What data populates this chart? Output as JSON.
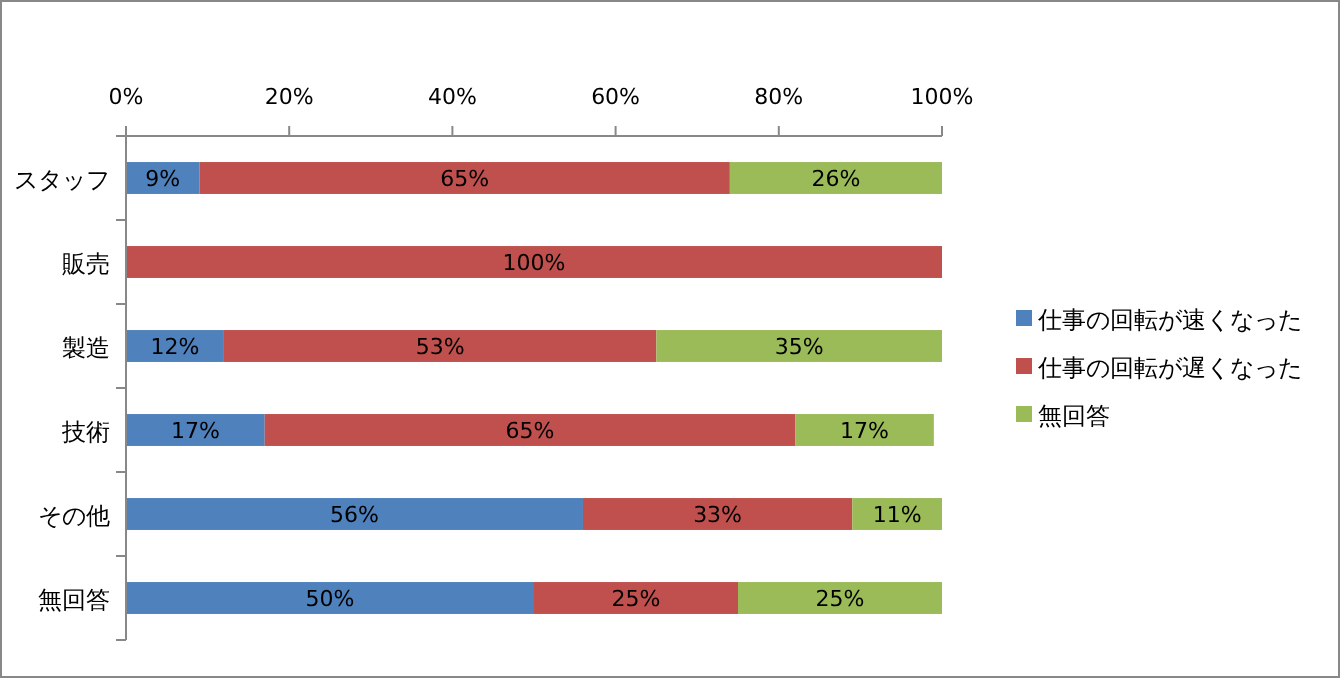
{
  "chart_data": {
    "type": "bar",
    "orientation": "horizontal",
    "stacked": true,
    "legend": "right",
    "grid": false,
    "categories": [
      "スタッフ",
      "販売",
      "製造",
      "技術",
      "その他",
      "無回答"
    ],
    "xlim": [
      0,
      100
    ],
    "xticks": [
      {
        "value": 0,
        "label": "0%"
      },
      {
        "value": 20,
        "label": "20%"
      },
      {
        "value": 40,
        "label": "40%"
      },
      {
        "value": 60,
        "label": "60%"
      },
      {
        "value": 80,
        "label": "80%"
      },
      {
        "value": 100,
        "label": "100%"
      }
    ],
    "series": [
      {
        "name": "仕事の回転が速くなった",
        "color": "#4f81bd",
        "values": [
          9,
          0,
          12,
          17,
          56,
          50
        ],
        "value_labels": [
          "9%",
          null,
          "12%",
          "17%",
          "56%",
          "50%"
        ]
      },
      {
        "name": "仕事の回転が遅くなった",
        "color": "#c0504d",
        "values": [
          65,
          100,
          53,
          65,
          33,
          25
        ],
        "value_labels": [
          "65%",
          "100%",
          "53%",
          "65%",
          "33%",
          "25%"
        ]
      },
      {
        "name": "無回答",
        "color": "#9bbb59",
        "values": [
          26,
          0,
          35,
          17,
          11,
          25
        ],
        "value_labels": [
          "26%",
          null,
          "35%",
          "17%",
          "11%",
          "25%"
        ]
      }
    ]
  }
}
